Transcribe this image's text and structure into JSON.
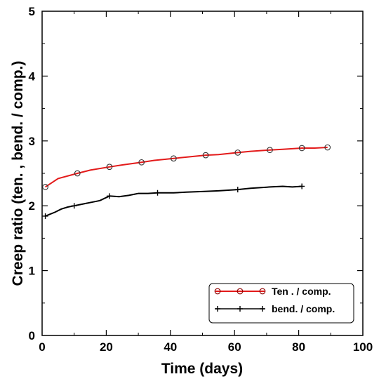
{
  "chart_data": {
    "type": "line",
    "xlabel": "Time (days)",
    "ylabel": "Creep ratio (ten. , bend. / comp.)",
    "xlim": [
      0,
      100
    ],
    "ylim": [
      0,
      5
    ],
    "xticks": [
      "0",
      "20",
      "40",
      "60",
      "80",
      "100"
    ],
    "yticks": [
      "0",
      "1",
      "2",
      "3",
      "4",
      "5"
    ],
    "grid": false,
    "legend_position": "bottom-right",
    "series": [
      {
        "name": "Ten . / comp.",
        "color": "#e31a1a",
        "marker": "open-circle",
        "marker_color": "#8b0000",
        "x": [
          1,
          5,
          11,
          15,
          21,
          25,
          31,
          35,
          41,
          45,
          51,
          55,
          61,
          65,
          71,
          75,
          81,
          85,
          89
        ],
        "values": [
          2.29,
          2.42,
          2.5,
          2.55,
          2.6,
          2.63,
          2.67,
          2.7,
          2.73,
          2.75,
          2.78,
          2.79,
          2.82,
          2.84,
          2.86,
          2.87,
          2.89,
          2.89,
          2.9
        ]
      },
      {
        "name": "bend. / comp.",
        "color": "#000000",
        "marker": "plus",
        "marker_color": "#000000",
        "x": [
          1,
          2,
          4,
          6,
          8,
          10,
          12,
          14,
          16,
          18,
          21,
          24,
          27,
          30,
          33,
          36,
          41,
          45,
          50,
          55,
          61,
          65,
          71,
          75,
          78,
          81
        ],
        "values": [
          1.84,
          1.86,
          1.9,
          1.95,
          1.98,
          2.0,
          2.02,
          2.04,
          2.06,
          2.08,
          2.15,
          2.14,
          2.16,
          2.19,
          2.19,
          2.2,
          2.2,
          2.21,
          2.22,
          2.23,
          2.25,
          2.27,
          2.29,
          2.3,
          2.29,
          2.3
        ]
      }
    ]
  }
}
